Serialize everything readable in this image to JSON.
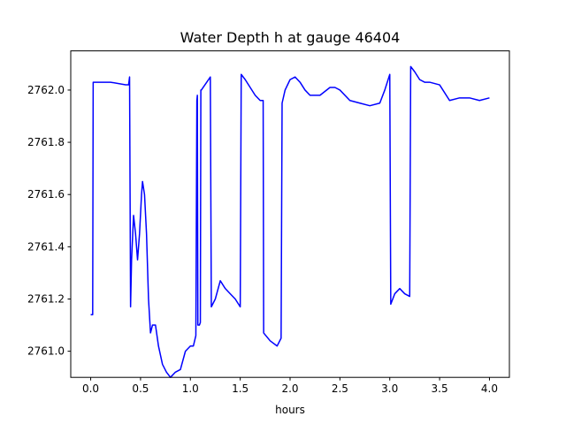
{
  "chart_data": {
    "type": "line",
    "title": "Water Depth h at gauge 46404",
    "xlabel": "hours",
    "ylabel": "",
    "xlim": [
      -0.2,
      4.2
    ],
    "ylim": [
      2760.9,
      2762.15
    ],
    "xticks": [
      0.0,
      0.5,
      1.0,
      1.5,
      2.0,
      2.5,
      3.0,
      3.5,
      4.0
    ],
    "xtick_labels": [
      "0.0",
      "0.5",
      "1.0",
      "1.5",
      "2.0",
      "2.5",
      "3.0",
      "3.5",
      "4.0"
    ],
    "yticks": [
      2761.0,
      2761.2,
      2761.4,
      2761.6,
      2761.8,
      2762.0
    ],
    "ytick_labels": [
      "2761.0",
      "2761.2",
      "2761.4",
      "2761.6",
      "2761.8",
      "2762.0"
    ],
    "grid": false,
    "series": [
      {
        "color": "#0000ff",
        "x": [
          0.0,
          0.02,
          0.025,
          0.2,
          0.35,
          0.38,
          0.39,
          0.4,
          0.41,
          0.43,
          0.45,
          0.47,
          0.49,
          0.51,
          0.52,
          0.54,
          0.56,
          0.58,
          0.6,
          0.62,
          0.65,
          0.68,
          0.72,
          0.76,
          0.8,
          0.85,
          0.9,
          0.95,
          1.0,
          1.03,
          1.055,
          1.065,
          1.07,
          1.075,
          1.085,
          1.09,
          1.1,
          1.105,
          1.11,
          1.2,
          1.21,
          1.25,
          1.3,
          1.35,
          1.4,
          1.45,
          1.5,
          1.51,
          1.55,
          1.6,
          1.65,
          1.7,
          1.73,
          1.735,
          1.8,
          1.87,
          1.91,
          1.92,
          1.95,
          2.0,
          2.05,
          2.1,
          2.15,
          2.2,
          2.3,
          2.4,
          2.45,
          2.5,
          2.6,
          2.7,
          2.8,
          2.9,
          2.95,
          3.0,
          3.01,
          3.05,
          3.1,
          3.15,
          3.2,
          3.21,
          3.25,
          3.3,
          3.35,
          3.4,
          3.5,
          3.6,
          3.7,
          3.8,
          3.9,
          4.0
        ],
        "y": [
          2761.14,
          2761.14,
          2762.03,
          2762.03,
          2762.02,
          2762.02,
          2762.05,
          2761.17,
          2761.35,
          2761.52,
          2761.45,
          2761.35,
          2761.45,
          2761.6,
          2761.65,
          2761.6,
          2761.45,
          2761.2,
          2761.07,
          2761.1,
          2761.1,
          2761.02,
          2760.95,
          2760.92,
          2760.9,
          2760.92,
          2760.93,
          2761.0,
          2761.02,
          2761.02,
          2761.06,
          2761.96,
          2761.98,
          2761.1,
          2761.1,
          2761.1,
          2761.11,
          2762.0,
          2762.0,
          2762.05,
          2761.17,
          2761.2,
          2761.27,
          2761.24,
          2761.22,
          2761.2,
          2761.17,
          2762.06,
          2762.04,
          2762.01,
          2761.98,
          2761.96,
          2761.96,
          2761.07,
          2761.04,
          2761.02,
          2761.05,
          2761.95,
          2762.0,
          2762.04,
          2762.05,
          2762.03,
          2762.0,
          2761.98,
          2761.98,
          2762.01,
          2762.01,
          2762.0,
          2761.96,
          2761.95,
          2761.94,
          2761.95,
          2762.0,
          2762.06,
          2761.18,
          2761.22,
          2761.24,
          2761.22,
          2761.21,
          2762.09,
          2762.07,
          2762.04,
          2762.03,
          2762.03,
          2762.02,
          2761.96,
          2761.97,
          2761.97,
          2761.96,
          2761.97
        ]
      }
    ]
  }
}
